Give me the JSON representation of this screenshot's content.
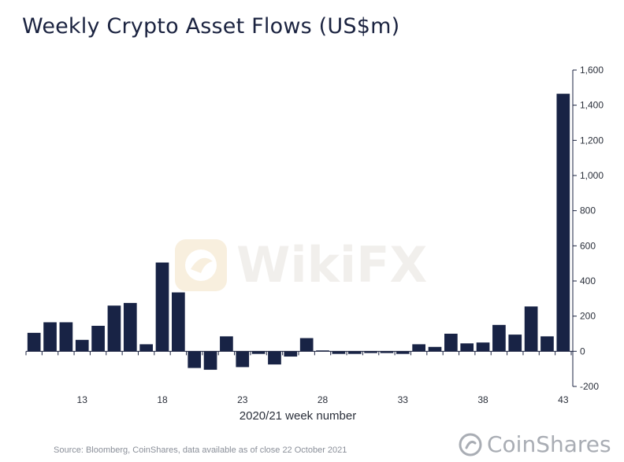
{
  "title": "Weekly Crypto Asset Flows (US$m)",
  "source": "Source: Bloomberg, CoinShares, data available as of close 22 October 2021",
  "brand": "CoinShares",
  "watermark": "WikiFX",
  "colors": {
    "bar": "#182345",
    "axis": "#1b2340",
    "title": "#1b2340"
  },
  "chart_data": {
    "type": "bar",
    "title": "Weekly Crypto Asset Flows (US$m)",
    "xlabel": "2020/21 week number",
    "ylabel": "",
    "ylim": [
      -200,
      1600
    ],
    "y_axis_side": "right",
    "yticks": [
      -200,
      0,
      200,
      400,
      600,
      800,
      1000,
      1200,
      1400,
      1600
    ],
    "ytick_labels": [
      "-200",
      "0",
      "200",
      "400",
      "600",
      "800",
      "1,000",
      "1,200",
      "1,400",
      "1,600"
    ],
    "xtick_labels": [
      "13",
      "18",
      "23",
      "28",
      "33",
      "38",
      "43"
    ],
    "xticks": [
      13,
      18,
      23,
      28,
      33,
      38,
      43
    ],
    "weeks": [
      10,
      11,
      12,
      13,
      14,
      15,
      16,
      17,
      18,
      19,
      20,
      21,
      22,
      23,
      24,
      25,
      26,
      27,
      28,
      29,
      30,
      31,
      32,
      33,
      34,
      35,
      36,
      37,
      38,
      39,
      40,
      41,
      42,
      43
    ],
    "values": [
      105,
      165,
      165,
      65,
      145,
      260,
      275,
      40,
      505,
      335,
      -95,
      -105,
      85,
      -90,
      -15,
      -75,
      -30,
      75,
      5,
      -15,
      -15,
      -10,
      -10,
      -15,
      40,
      25,
      100,
      45,
      50,
      150,
      95,
      255,
      85,
      1465
    ],
    "grid": false,
    "legend": "none"
  }
}
